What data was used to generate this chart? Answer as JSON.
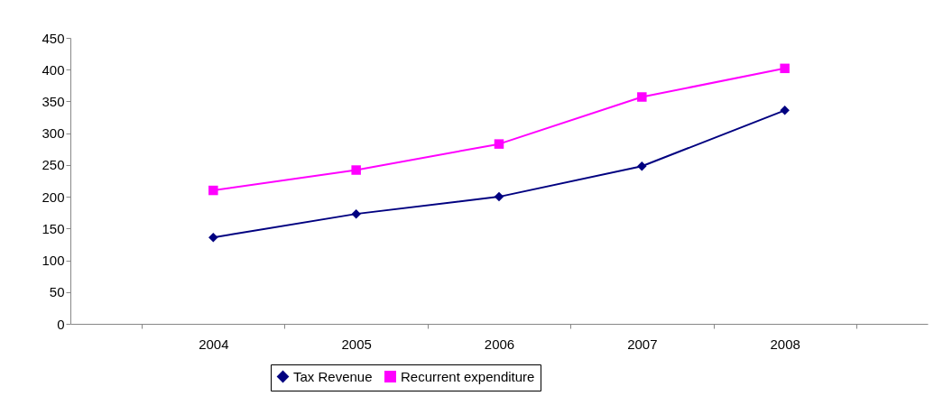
{
  "chart_data": {
    "type": "line",
    "categories": [
      "2004",
      "2005",
      "2006",
      "2007",
      "2008"
    ],
    "series": [
      {
        "name": "Tax Revenue",
        "color": "#000080",
        "marker": "diamond",
        "values": [
          136,
          173,
          200,
          248,
          336
        ]
      },
      {
        "name": "Recurrent expenditure",
        "color": "#ff00ff",
        "marker": "square",
        "values": [
          210,
          242,
          283,
          357,
          402
        ]
      }
    ],
    "ylim": [
      0,
      450
    ],
    "yticks": [
      0,
      50,
      100,
      150,
      200,
      250,
      300,
      350,
      400,
      450
    ],
    "grid": false,
    "legend": "bottom"
  }
}
